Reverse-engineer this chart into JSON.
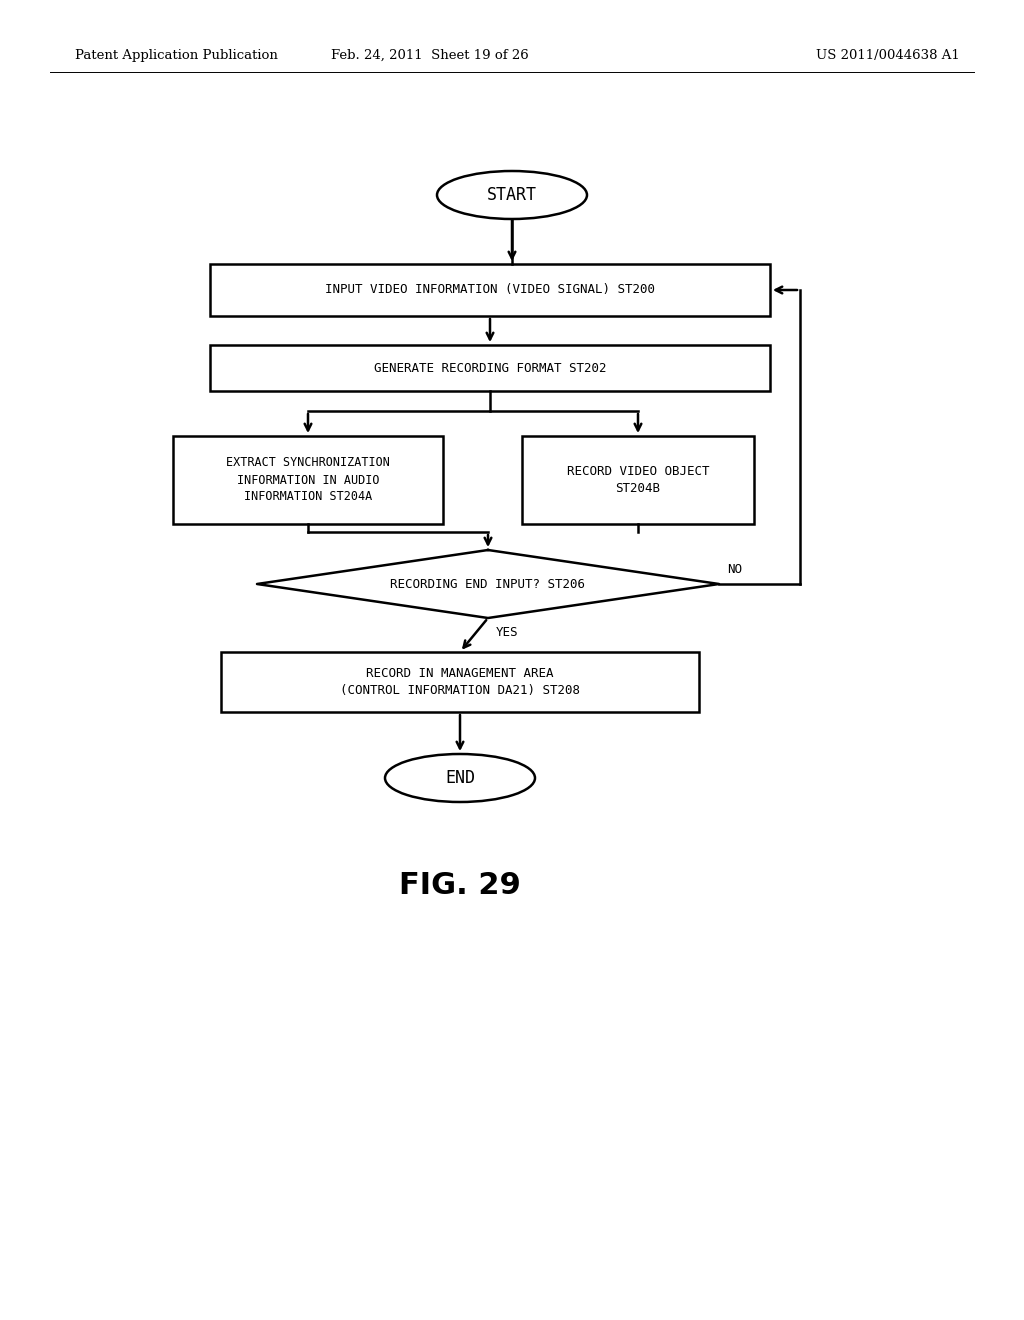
{
  "bg_color": "#ffffff",
  "header_left": "Patent Application Publication",
  "header_mid": "Feb. 24, 2011  Sheet 19 of 26",
  "header_right": "US 2011/0044638 A1",
  "figure_label": "FIG. 29",
  "line_color": "#000000",
  "text_color": "#000000",
  "start_text": "START",
  "st200_text": "INPUT VIDEO INFORMATION (VIDEO SIGNAL) ST200",
  "st202_text": "GENERATE RECORDING FORMAT ST202",
  "st204a_text": "EXTRACT SYNCHRONIZATION\nINFORMATION IN AUDIO\nINFORMATION ST204A",
  "st204b_text": "RECORD VIDEO OBJECT\nST204B",
  "st206_text": "RECORDING END INPUT? ST206",
  "st208_text": "RECORD IN MANAGEMENT AREA\n(CONTROL INFORMATION DA21) ST208",
  "end_text": "END",
  "yes_text": "YES",
  "no_text": "NO"
}
